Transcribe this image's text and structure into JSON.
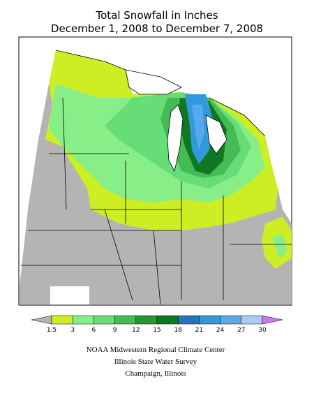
{
  "title": [
    "Total Snowfall in Inches",
    "December 1, 2008 to December 7, 2008"
  ],
  "legend": {
    "ticks": [
      1.5,
      3,
      6,
      9,
      12,
      15,
      18,
      21,
      24,
      27,
      30
    ],
    "colors": [
      "#b4b4b4",
      "#ccee22",
      "#88ee88",
      "#66dd77",
      "#44bb55",
      "#229933",
      "#117722",
      "#2277bb",
      "#3399dd",
      "#55aaee",
      "#aaccee",
      "#cc77ee"
    ]
  },
  "credits": [
    "NOAA Midwestern Regional Climate Center",
    "Illinois State Water Survey",
    "Champaign, Illinois"
  ]
}
